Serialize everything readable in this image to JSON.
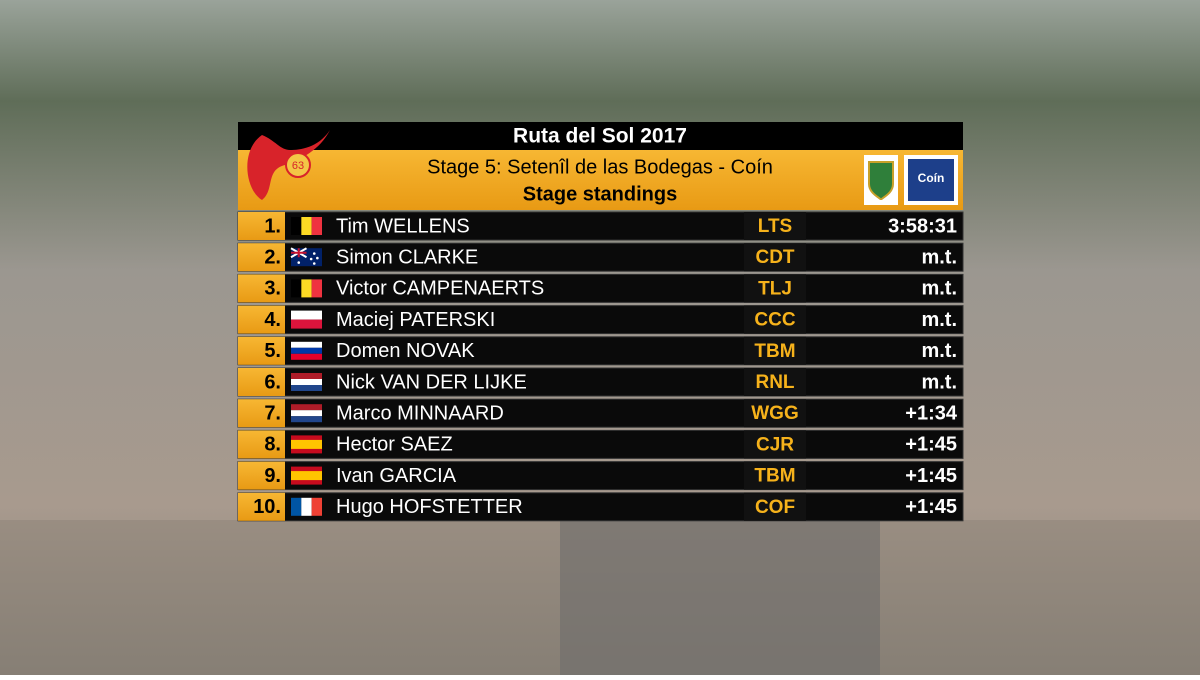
{
  "header": {
    "title": "Ruta del Sol 2017",
    "logo_badge": "63",
    "stage": "Stage 5: Setenîl de las Bodegas - Coín",
    "subtitle": "Stage standings",
    "sponsor_logo": "Coín"
  },
  "table": {
    "rows": [
      {
        "rank": "1.",
        "name": "Tim WELLENS",
        "team": "LTS",
        "time": "3:58:31"
      },
      {
        "rank": "2.",
        "name": "Simon CLARKE",
        "team": "CDT",
        "time": "m.t."
      },
      {
        "rank": "3.",
        "name": "Victor CAMPENAERTS",
        "team": "TLJ",
        "time": "m.t."
      },
      {
        "rank": "4.",
        "name": "Maciej PATERSKI",
        "team": "CCC",
        "time": "m.t."
      },
      {
        "rank": "5.",
        "name": "Domen NOVAK",
        "team": "TBM",
        "time": "m.t."
      },
      {
        "rank": "6.",
        "name": "Nick VAN DER LIJKE",
        "team": "RNL",
        "time": "m.t."
      },
      {
        "rank": "7.",
        "name": "Marco MINNAARD",
        "team": "WGG",
        "time": "+1:34"
      },
      {
        "rank": "8.",
        "name": "Hector SAEZ",
        "team": "CJR",
        "time": "+1:45"
      },
      {
        "rank": "9.",
        "name": "Ivan GARCIA",
        "team": "TBM",
        "time": "+1:45"
      },
      {
        "rank": "10.",
        "name": "Hugo HOFSTETTER",
        "team": "COF",
        "time": "+1:45"
      }
    ]
  }
}
